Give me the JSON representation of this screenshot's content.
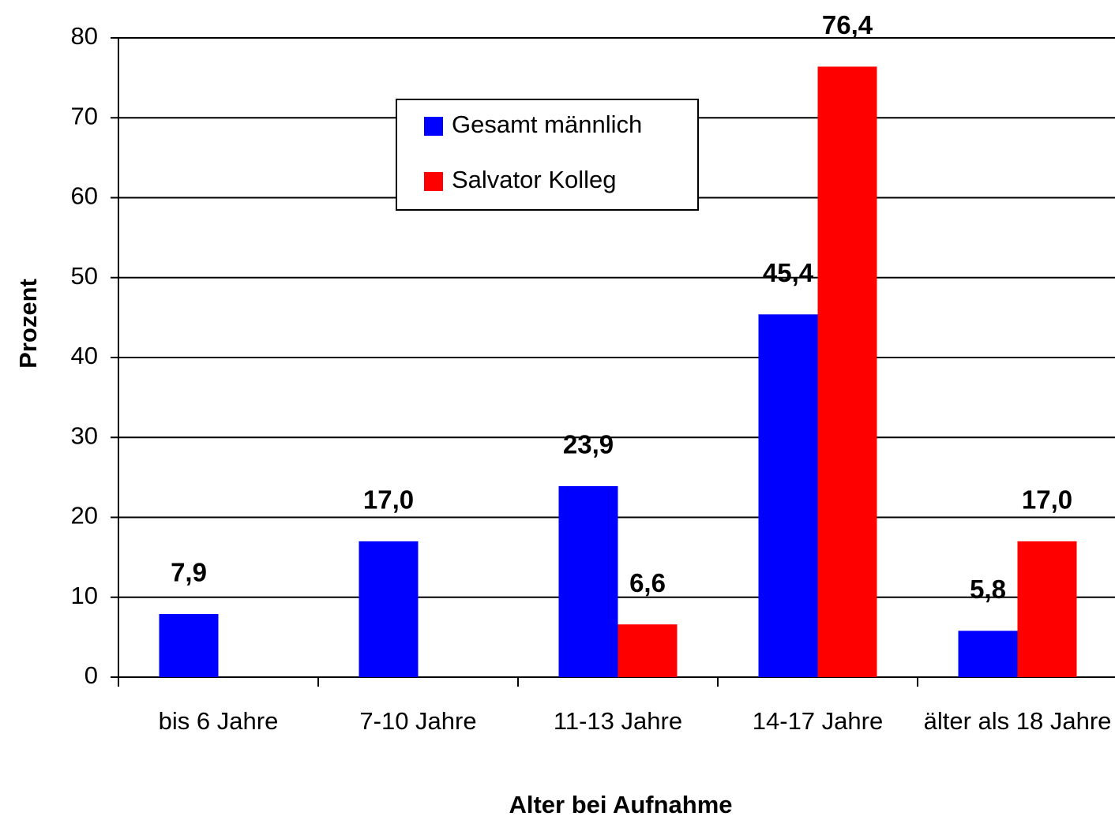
{
  "chart_data": {
    "type": "bar",
    "x_label": "Alter bei Aufnahme",
    "y_label": "Prozent",
    "categories": [
      "bis 6 Jahre",
      "7-10 Jahre",
      "11-13 Jahre",
      "14-17 Jahre",
      "älter als 18 Jahre"
    ],
    "series": [
      {
        "name": "Gesamt männlich",
        "color": "#0000ff",
        "values": [
          7.9,
          17.0,
          23.9,
          45.4,
          5.8
        ],
        "value_labels": [
          "7,9",
          "17,0",
          "23,9",
          "45,4",
          "5,8"
        ]
      },
      {
        "name": "Salvator Kolleg",
        "color": "#ff0000",
        "values": [
          null,
          null,
          6.6,
          76.4,
          17.0
        ],
        "value_labels": [
          null,
          null,
          "6,6",
          "76,4",
          "17,0"
        ]
      }
    ],
    "ylim": [
      0,
      80
    ],
    "yticks": [
      0,
      10,
      20,
      30,
      40,
      50,
      60,
      70,
      80
    ],
    "grid": true,
    "legend": "upper center"
  }
}
